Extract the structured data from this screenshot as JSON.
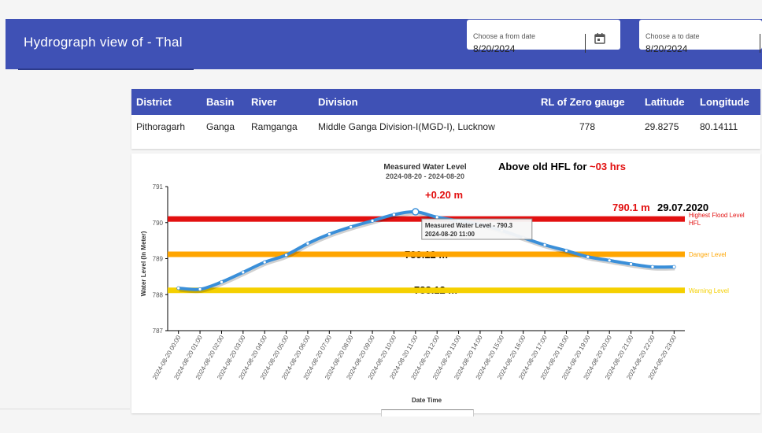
{
  "header": {
    "title": "Hydrograph view of - Thal"
  },
  "date_from": {
    "label": "Choose a from date",
    "value": "8/20/2024",
    "icon": "calendar-icon"
  },
  "date_to": {
    "label": "Choose a to date",
    "value": "8/20/2024"
  },
  "table": {
    "headers": [
      "District",
      "Basin",
      "River",
      "Division",
      "RL of Zero gauge",
      "Latitude",
      "Longitude"
    ],
    "row": [
      "Pithoragarh",
      "Ganga",
      "Ramganga",
      "Middle Ganga Division-I(MGD-I), Lucknow",
      "778",
      "29.8275",
      "80.14111"
    ]
  },
  "chart_data": {
    "type": "line",
    "title": "Measured Water Level",
    "subtitle": "2024-08-20 - 2024-08-20",
    "xlabel": "Date Time",
    "ylabel": "Water Level (In Meter)",
    "ylim": [
      787,
      791
    ],
    "yticks": [
      "787",
      "788",
      "789",
      "790",
      "791"
    ],
    "categories": [
      "2024-08-20 00:00",
      "2024-08-20 01:00",
      "2024-08-20 02:00",
      "2024-08-20 03:00",
      "2024-08-20 04:00",
      "2024-08-20 05:00",
      "2024-08-20 06:00",
      "2024-08-20 07:00",
      "2024-08-20 08:00",
      "2024-08-20 09:00",
      "2024-08-20 10:00",
      "2024-08-20 11:00",
      "2024-08-20 12:00",
      "2024-08-20 13:00",
      "2024-08-20 14:00",
      "2024-08-20 15:00",
      "2024-08-20 16:00",
      "2024-08-20 17:00",
      "2024-08-20 18:00",
      "2024-08-20 19:00",
      "2024-08-20 20:00",
      "2024-08-20 21:00",
      "2024-08-20 22:00",
      "2024-08-20 23:00"
    ],
    "series": [
      {
        "name": "Measured Water Level",
        "color": "#3a8fd9",
        "values": [
          788.18,
          788.15,
          788.35,
          788.62,
          788.9,
          789.1,
          789.42,
          789.68,
          789.88,
          790.05,
          790.22,
          790.3,
          790.15,
          790.05,
          789.95,
          789.78,
          789.58,
          789.38,
          789.22,
          789.05,
          788.95,
          788.85,
          788.77,
          788.77
        ]
      }
    ],
    "reference_lines": [
      {
        "name": "Highest Flood Level HFL",
        "name_lines": [
          "Highest Flood Level",
          "HFL"
        ],
        "value": 790.1,
        "color": "#e21010"
      },
      {
        "name": "Danger Level",
        "name_lines": [
          "Danger Level"
        ],
        "value": 789.12,
        "color": "#ffa500"
      },
      {
        "name": "Warning Level",
        "name_lines": [
          "Warning Level"
        ],
        "value": 788.12,
        "color": "#f5d000"
      }
    ],
    "tooltip": {
      "title": "Measured Water Level - 790.3",
      "time": "2024-08-20 11:00"
    },
    "annotations": {
      "above_prefix": "Above old HFL for ",
      "above_duration": "~03 hrs",
      "rise": "+0.20 m",
      "hfl_value": "790.1 m",
      "hfl_date": "29.07.2020",
      "danger_value": "789.12 m",
      "warning_value": "788.12 m"
    },
    "legend": "none",
    "grid": false
  }
}
